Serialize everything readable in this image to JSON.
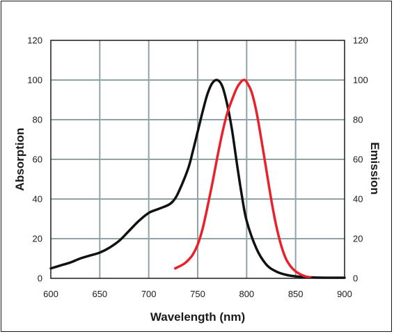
{
  "chart_data": {
    "type": "line",
    "xlabel": "Wavelength (nm)",
    "ylabel": "Absorption",
    "y2label": "Emission",
    "xlim": [
      600,
      900
    ],
    "ylim": [
      0,
      120
    ],
    "y2lim": [
      0,
      120
    ],
    "xticks": [
      "600",
      "650",
      "700",
      "750",
      "800",
      "850",
      "900"
    ],
    "yticks": [
      "0",
      "20",
      "40",
      "60",
      "80",
      "100",
      "120"
    ],
    "y2ticks": [
      "0",
      "20",
      "40",
      "60",
      "80",
      "100",
      "120"
    ],
    "grid": true,
    "series": [
      {
        "color": "#111111",
        "axis": "left",
        "x": [
          600,
          610,
          620,
          630,
          640,
          650,
          660,
          670,
          680,
          690,
          700,
          710,
          720,
          725,
          730,
          740,
          745,
          750,
          755,
          760,
          765,
          770,
          775,
          780,
          785,
          790,
          795,
          800,
          810,
          820,
          830,
          840,
          850,
          860,
          870,
          880,
          890,
          900
        ],
        "y": [
          5,
          6.5,
          8,
          10,
          11.5,
          13,
          15.5,
          19,
          24,
          29,
          33,
          35,
          37,
          39,
          43,
          55,
          64,
          74,
          84,
          93,
          98.5,
          100,
          97,
          88,
          75,
          58,
          42,
          29,
          15,
          7,
          3.5,
          1.8,
          1,
          0.6,
          0.4,
          0.3,
          0.3,
          0.3
        ]
      },
      {
        "color": "#e8212b",
        "axis": "right",
        "x": [
          727,
          735,
          740,
          745,
          750,
          755,
          760,
          765,
          770,
          775,
          780,
          785,
          790,
          795,
          798,
          800,
          805,
          810,
          815,
          820,
          825,
          830,
          835,
          840,
          845,
          850,
          855,
          860,
          865
        ],
        "y": [
          5,
          7,
          9,
          12,
          17,
          25,
          36,
          48,
          61,
          73,
          83,
          90,
          96,
          99.5,
          100,
          99,
          94,
          84,
          70,
          55,
          40,
          27,
          17,
          10,
          6,
          3.5,
          2,
          1,
          0.5
        ]
      }
    ]
  }
}
